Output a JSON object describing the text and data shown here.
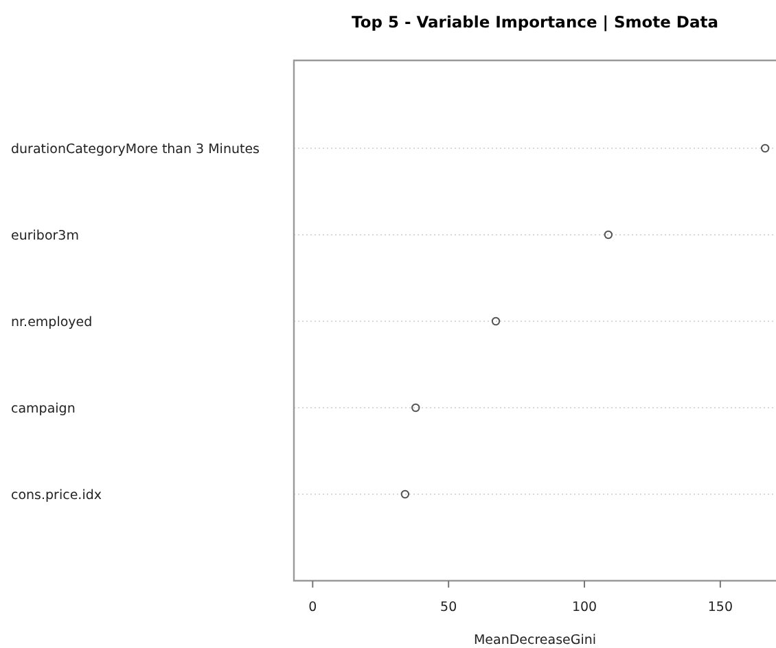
{
  "chart_data": {
    "type": "scatter",
    "orientation": "horizontal",
    "title": "Top 5 - Variable Importance | Smote Data",
    "xlabel": "MeanDecreaseGini",
    "categories": [
      "durationCategoryMore than 3 Minutes",
      "euribor3m",
      "nr.employed",
      "campaign",
      "cons.price.idx"
    ],
    "values": [
      166.5,
      108.8,
      67.4,
      37.9,
      34.0
    ],
    "color": "#555555",
    "marker": "circle",
    "grid": "y",
    "xlim": [
      -6.9,
      170.5
    ],
    "xticks": [
      0,
      50,
      100,
      150
    ]
  }
}
